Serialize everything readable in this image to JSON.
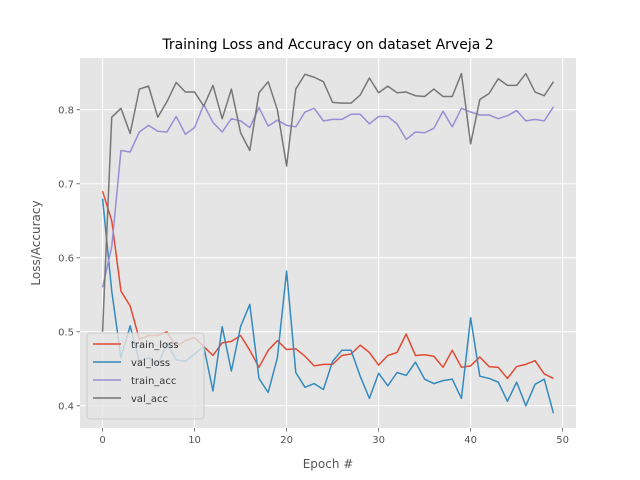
{
  "chart_data": {
    "type": "line",
    "title": "Training Loss and Accuracy on dataset Arveja 2",
    "xlabel": "Epoch #",
    "ylabel": "Loss/Accuracy",
    "xlim": [
      -2.45,
      51.45
    ],
    "ylim": [
      0.37,
      0.87
    ],
    "xticks": [
      0,
      10,
      20,
      30,
      40,
      50
    ],
    "yticks": [
      0.4,
      0.5,
      0.6,
      0.7,
      0.8
    ],
    "grid": true,
    "legend_position": "lower-left",
    "x": [
      0,
      1,
      2,
      3,
      4,
      5,
      6,
      7,
      8,
      9,
      10,
      11,
      12,
      13,
      14,
      15,
      16,
      17,
      18,
      19,
      20,
      21,
      22,
      23,
      24,
      25,
      26,
      27,
      28,
      29,
      30,
      31,
      32,
      33,
      34,
      35,
      36,
      37,
      38,
      39,
      40,
      41,
      42,
      43,
      44,
      45,
      46,
      47,
      48,
      49
    ],
    "series": [
      {
        "name": "train_loss",
        "color": "#e24a33",
        "values": [
          0.69,
          0.65,
          0.555,
          0.535,
          0.49,
          0.495,
          0.495,
          0.5,
          0.48,
          0.488,
          0.492,
          0.48,
          0.468,
          0.485,
          0.487,
          0.495,
          0.475,
          0.452,
          0.475,
          0.488,
          0.476,
          0.477,
          0.467,
          0.454,
          0.456,
          0.456,
          0.468,
          0.47,
          0.482,
          0.472,
          0.455,
          0.468,
          0.472,
          0.497,
          0.468,
          0.469,
          0.467,
          0.452,
          0.475,
          0.452,
          0.454,
          0.466,
          0.453,
          0.452,
          0.437,
          0.453,
          0.456,
          0.461,
          0.443,
          0.437
        ]
      },
      {
        "name": "val_loss",
        "color": "#348abd",
        "values": [
          0.68,
          0.555,
          0.465,
          0.508,
          0.46,
          0.465,
          0.455,
          0.485,
          0.462,
          0.46,
          0.47,
          0.48,
          0.42,
          0.507,
          0.447,
          0.507,
          0.537,
          0.437,
          0.418,
          0.465,
          0.582,
          0.445,
          0.425,
          0.43,
          0.422,
          0.46,
          0.475,
          0.475,
          0.44,
          0.41,
          0.444,
          0.427,
          0.445,
          0.441,
          0.459,
          0.436,
          0.43,
          0.434,
          0.436,
          0.41,
          0.519,
          0.44,
          0.437,
          0.432,
          0.406,
          0.432,
          0.4,
          0.429,
          0.436,
          0.39
        ]
      },
      {
        "name": "train_acc",
        "color": "#988ed5",
        "values": [
          0.56,
          0.615,
          0.745,
          0.743,
          0.77,
          0.779,
          0.771,
          0.77,
          0.791,
          0.767,
          0.776,
          0.807,
          0.783,
          0.77,
          0.788,
          0.785,
          0.776,
          0.803,
          0.778,
          0.786,
          0.779,
          0.777,
          0.797,
          0.802,
          0.785,
          0.787,
          0.787,
          0.794,
          0.794,
          0.781,
          0.791,
          0.791,
          0.781,
          0.76,
          0.77,
          0.769,
          0.775,
          0.798,
          0.777,
          0.802,
          0.797,
          0.793,
          0.793,
          0.788,
          0.792,
          0.799,
          0.785,
          0.787,
          0.785,
          0.804
        ]
      },
      {
        "name": "val_acc",
        "color": "#777777",
        "values": [
          0.5,
          0.79,
          0.802,
          0.768,
          0.828,
          0.832,
          0.79,
          0.811,
          0.837,
          0.824,
          0.824,
          0.805,
          0.833,
          0.788,
          0.828,
          0.769,
          0.745,
          0.823,
          0.838,
          0.8,
          0.724,
          0.828,
          0.848,
          0.844,
          0.838,
          0.81,
          0.809,
          0.809,
          0.82,
          0.843,
          0.823,
          0.832,
          0.823,
          0.824,
          0.819,
          0.818,
          0.828,
          0.818,
          0.818,
          0.849,
          0.754,
          0.814,
          0.822,
          0.842,
          0.833,
          0.833,
          0.849,
          0.824,
          0.819,
          0.838
        ]
      }
    ]
  }
}
